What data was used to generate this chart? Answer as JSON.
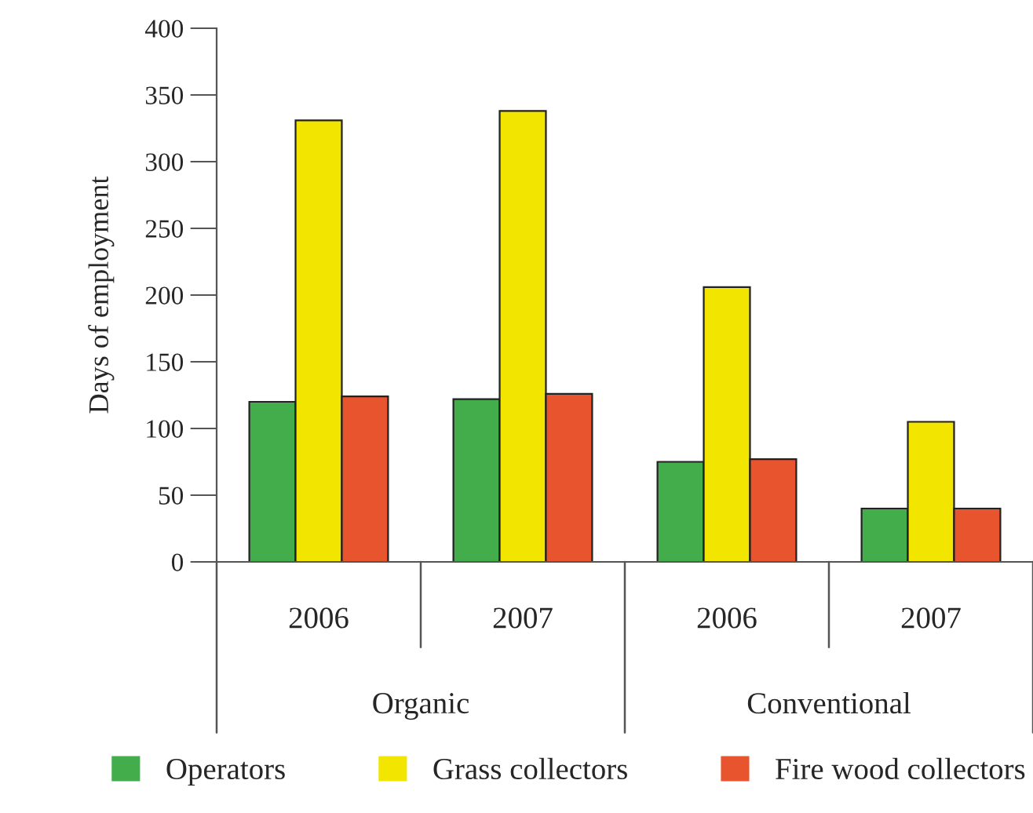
{
  "chart_data": {
    "type": "bar",
    "ylabel": "Days of employment",
    "categories": [
      "2006",
      "2007",
      "2006",
      "2007"
    ],
    "series": [
      {
        "name": "Operators",
        "color": "#42ad4a",
        "values": [
          120,
          122,
          75,
          40
        ]
      },
      {
        "name": "Grass collectors",
        "color": "#f2e500",
        "values": [
          331,
          338,
          206,
          105
        ]
      },
      {
        "name": "Fire wood collectors",
        "color": "#e8542d",
        "values": [
          124,
          126,
          77,
          40
        ]
      }
    ],
    "annotations": [
      "Organic",
      "Conventional"
    ],
    "ylim": [
      0,
      400
    ],
    "yticks": [
      0,
      50,
      100,
      150,
      200,
      250,
      300,
      350,
      400
    ],
    "grid": false,
    "legend": "bottom"
  }
}
